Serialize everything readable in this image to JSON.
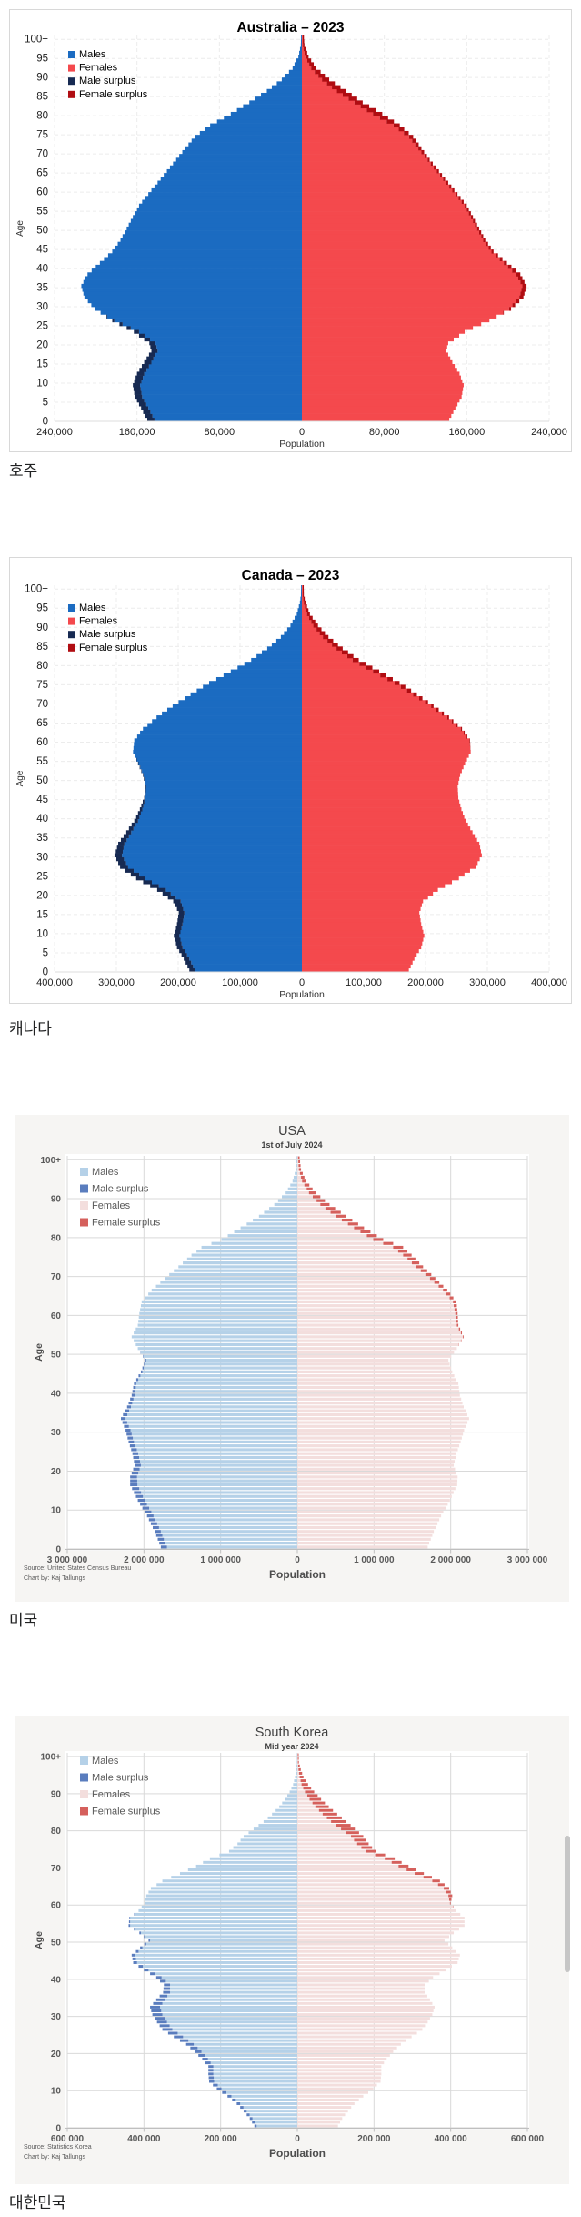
{
  "page": {
    "background": "#ffffff"
  },
  "chart_data": [
    {
      "type": "population-pyramid-bar",
      "title": "Australia – 2023",
      "subtitle": "",
      "caption": "호주",
      "x_axis": {
        "label": "Population",
        "max": 240000,
        "tick_step": 80000,
        "tick_labels": [
          "240,000",
          "160,000",
          "80,000",
          "0",
          "80,000",
          "160,000",
          "240,000"
        ]
      },
      "y_axis": {
        "label": "Age",
        "tick_step": 5,
        "tick_labels": [
          "0",
          "5",
          "10",
          "15",
          "20",
          "25",
          "30",
          "35",
          "40",
          "45",
          "50",
          "55",
          "60",
          "65",
          "70",
          "75",
          "80",
          "85",
          "90",
          "95",
          "100+"
        ]
      },
      "legend": [
        {
          "label": "Males",
          "color_key": "males"
        },
        {
          "label": "Females",
          "color_key": "females"
        },
        {
          "label": "Male surplus",
          "color_key": "male_surplus"
        },
        {
          "label": "Female surplus",
          "color_key": "female_surplus"
        }
      ],
      "colors": {
        "males": "#1b6bc1",
        "females": "#f4494d",
        "male_surplus": "#172a52",
        "female_surplus": "#b00d12"
      },
      "values_unit": "persons (thousands), single-year ages, linear interpolation between anchor ages",
      "ages": [
        0,
        3,
        6,
        9,
        12,
        15,
        18,
        20,
        23,
        26,
        29,
        32,
        35,
        38,
        41,
        44,
        47,
        50,
        53,
        56,
        59,
        62,
        65,
        68,
        71,
        74,
        77,
        80,
        83,
        86,
        89,
        92,
        95,
        98,
        100
      ],
      "males": [
        150,
        156,
        162,
        164,
        160,
        153,
        146,
        148,
        163,
        184,
        201,
        211,
        214,
        208,
        196,
        184,
        176,
        170,
        164,
        158,
        149,
        140,
        131,
        122,
        113,
        104,
        89,
        69,
        51,
        34,
        19.5,
        9,
        3.4,
        1,
        0.8
      ],
      "females": [
        143,
        149,
        155,
        157,
        153,
        146,
        140,
        142,
        158,
        182,
        203,
        215,
        218,
        212,
        199,
        186,
        178,
        172,
        166,
        160,
        151,
        142,
        133,
        124,
        116,
        108,
        95,
        78,
        59,
        43,
        26.5,
        14,
        6.5,
        2.5,
        2
      ],
      "source_lines": []
    },
    {
      "type": "population-pyramid-bar",
      "title": "Canada – 2023",
      "subtitle": "",
      "caption": "캐나다",
      "x_axis": {
        "label": "Population",
        "max": 400000,
        "tick_step": 100000,
        "tick_labels": [
          "400,000",
          "300,000",
          "200,000",
          "100,000",
          "0",
          "100,000",
          "200,000",
          "300,000",
          "400,000"
        ]
      },
      "y_axis": {
        "label": "Age",
        "tick_step": 5,
        "tick_labels": [
          "0",
          "5",
          "10",
          "15",
          "20",
          "25",
          "30",
          "35",
          "40",
          "45",
          "50",
          "55",
          "60",
          "65",
          "70",
          "75",
          "80",
          "85",
          "90",
          "95",
          "100+"
        ]
      },
      "legend": [
        {
          "label": "Males",
          "color_key": "males"
        },
        {
          "label": "Females",
          "color_key": "females"
        },
        {
          "label": "Male surplus",
          "color_key": "male_surplus"
        },
        {
          "label": "Female surplus",
          "color_key": "female_surplus"
        }
      ],
      "colors": {
        "males": "#1b6bc1",
        "females": "#f4494d",
        "male_surplus": "#172a52",
        "female_surplus": "#b00d12"
      },
      "values_unit": "persons (thousands), single-year ages, linear interpolation between anchor ages",
      "ages": [
        0,
        3,
        6,
        9,
        12,
        15,
        18,
        21,
        24,
        27,
        30,
        33,
        36,
        39,
        42,
        45,
        48,
        51,
        54,
        57,
        60,
        63,
        66,
        69,
        72,
        75,
        78,
        81,
        84,
        87,
        90,
        93,
        96,
        98,
        100
      ],
      "males": [
        182,
        191,
        202,
        207,
        202,
        199,
        208,
        234,
        268,
        294,
        303,
        297,
        284,
        271,
        262,
        255,
        253,
        257,
        265,
        273,
        271,
        257,
        235,
        209,
        180,
        150,
        115,
        82,
        56,
        34,
        18.5,
        8.3,
        3.2,
        1.5,
        1.3
      ],
      "females": [
        173,
        182,
        193,
        198,
        193,
        190,
        196,
        220,
        254,
        281,
        291,
        287,
        276,
        265,
        258,
        253,
        252,
        256,
        264,
        273,
        272,
        259,
        238,
        213,
        186,
        158,
        125,
        92,
        66,
        43,
        26,
        13,
        6,
        3.2,
        3
      ],
      "source_lines": []
    },
    {
      "type": "population-pyramid-bar",
      "title": "USA",
      "subtitle": "1st of July 2024",
      "caption": "미국",
      "x_axis": {
        "label": "Population",
        "max": 3000000,
        "tick_step": 1000000,
        "tick_labels": [
          "3 000 000",
          "2 000 000",
          "1 000 000",
          "0",
          "1 000 000",
          "2 000 000",
          "3 000 000"
        ]
      },
      "y_axis": {
        "label": "Age",
        "tick_step": 10,
        "tick_labels": [
          "0",
          "10",
          "20",
          "30",
          "40",
          "50",
          "60",
          "70",
          "80",
          "90",
          "100+"
        ]
      },
      "legend": [
        {
          "label": "Males",
          "color_key": "males"
        },
        {
          "label": "Male surplus",
          "color_key": "male_surplus"
        },
        {
          "label": "Females",
          "color_key": "females"
        },
        {
          "label": "Female surplus",
          "color_key": "female_surplus"
        }
      ],
      "colors": {
        "males": "#b5d1e8",
        "females": "#f3dedd",
        "male_surplus": "#5a7dbe",
        "female_surplus": "#d5605c"
      },
      "values_unit": "persons (thousands), single-year ages, linear interpolation between anchor ages",
      "ages": [
        0,
        4,
        8,
        12,
        16,
        18,
        21,
        24,
        27,
        30,
        33,
        36,
        39,
        42,
        45,
        48,
        51,
        54,
        57,
        60,
        63,
        66,
        69,
        72,
        75,
        77,
        79,
        82,
        85,
        88,
        91,
        94,
        97,
        100
      ],
      "males": [
        1780,
        1860,
        1960,
        2080,
        2180,
        2180,
        2120,
        2150,
        2200,
        2240,
        2300,
        2220,
        2160,
        2130,
        2040,
        1980,
        2080,
        2160,
        2080,
        2060,
        2030,
        1900,
        1730,
        1550,
        1380,
        1250,
        990,
        740,
        500,
        300,
        152,
        62,
        20,
        10
      ],
      "females": [
        1700,
        1780,
        1875,
        1990,
        2085,
        2090,
        2040,
        2075,
        2130,
        2175,
        2240,
        2170,
        2120,
        2100,
        2020,
        1970,
        2080,
        2170,
        2100,
        2090,
        2075,
        1955,
        1800,
        1640,
        1490,
        1380,
        1120,
        870,
        640,
        420,
        240,
        115,
        48,
        30
      ],
      "source_lines": [
        "Source: United States Census Bureau",
        "Chart by: Kaj Tallungs"
      ]
    },
    {
      "type": "population-pyramid-bar",
      "title": "South Korea",
      "subtitle": "Mid year 2024",
      "caption": "대한민국",
      "x_axis": {
        "label": "Population",
        "max": 600000,
        "tick_step": 200000,
        "tick_labels": [
          "600 000",
          "400 000",
          "200 000",
          "0",
          "200 000",
          "400 000",
          "600 000"
        ]
      },
      "y_axis": {
        "label": "Age",
        "tick_step": 10,
        "tick_labels": [
          "0",
          "10",
          "20",
          "30",
          "40",
          "50",
          "60",
          "70",
          "80",
          "90",
          "100+"
        ]
      },
      "legend": [
        {
          "label": "Males",
          "color_key": "males"
        },
        {
          "label": "Male surplus",
          "color_key": "male_surplus"
        },
        {
          "label": "Females",
          "color_key": "females"
        },
        {
          "label": "Female surplus",
          "color_key": "female_surplus"
        }
      ],
      "colors": {
        "males": "#b5d1e8",
        "females": "#f3dedd",
        "male_surplus": "#5a7dbe",
        "female_surplus": "#d5605c"
      },
      "values_unit": "persons (thousands), single-year ages, linear interpolation between anchor ages",
      "ages": [
        0,
        2,
        4,
        6,
        8,
        10,
        12,
        14,
        16,
        18,
        20,
        22,
        24,
        26,
        28,
        30,
        32,
        34,
        36,
        38,
        40,
        42,
        44,
        46,
        48,
        50,
        52,
        54,
        56,
        58,
        60,
        62,
        64,
        66,
        68,
        70,
        72,
        74,
        76,
        78,
        80,
        82,
        84,
        86,
        88,
        90,
        92,
        94,
        96,
        98,
        100
      ],
      "males": [
        112,
        124,
        140,
        158,
        182,
        210,
        230,
        232,
        232,
        248,
        268,
        290,
        322,
        352,
        366,
        378,
        384,
        368,
        350,
        348,
        368,
        400,
        428,
        432,
        410,
        388,
        412,
        440,
        438,
        414,
        398,
        394,
        382,
        352,
        306,
        264,
        228,
        178,
        156,
        140,
        114,
        88,
        66,
        47,
        32,
        20,
        11,
        6,
        3.2,
        1.5,
        1.2
      ],
      "females": [
        106,
        117,
        132,
        149,
        172,
        198,
        217,
        219,
        219,
        233,
        250,
        270,
        298,
        326,
        340,
        352,
        358,
        346,
        332,
        332,
        354,
        388,
        418,
        424,
        404,
        384,
        408,
        436,
        436,
        414,
        400,
        404,
        396,
        372,
        330,
        290,
        254,
        204,
        186,
        172,
        150,
        128,
        104,
        82,
        62,
        44,
        28,
        16,
        9,
        4,
        3.5
      ],
      "source_lines": [
        "Source: Statistics Korea",
        "Chart by: Kaj Tallungs"
      ]
    }
  ],
  "theme": {
    "classic": {
      "grid": "#ececec",
      "axis_text": "#222222",
      "plot_border": "#dddddd"
    },
    "excel": {
      "panel": "#f6f5f3",
      "plot_bg": "#ffffff",
      "grid": "#d9d9d9",
      "axis_line": "#bfbfbf",
      "axis_text": "#595959"
    }
  }
}
